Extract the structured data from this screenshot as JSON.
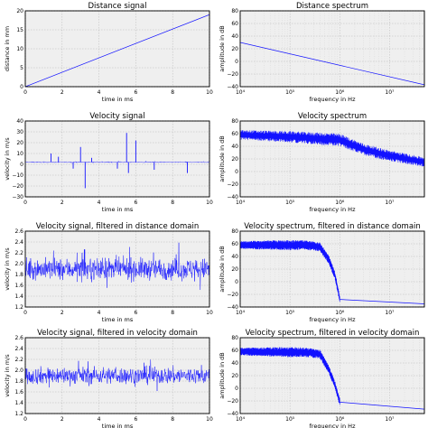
{
  "colors": {
    "line": "#1212ff",
    "axes_bg": "#efefef",
    "grid": "#b8b8b8"
  },
  "chart_data": [
    {
      "type": "line",
      "title": "Distance signal",
      "xlabel": "time in ms",
      "ylabel": "distance in mm",
      "xlim": [
        0,
        10
      ],
      "ylim": [
        0,
        20
      ],
      "xticks": [
        0,
        2,
        4,
        6,
        8,
        10
      ],
      "xtick_labels": [
        "0",
        "2",
        "4",
        "6",
        "8",
        "10"
      ],
      "yticks": [
        0,
        5,
        10,
        15,
        20
      ],
      "ytick_labels": [
        "0",
        "5",
        "10",
        "15",
        "20"
      ],
      "grid": true,
      "series": [
        {
          "kind": "straight",
          "x": [
            0,
            10
          ],
          "y": [
            0,
            19
          ]
        }
      ]
    },
    {
      "type": "line",
      "title": "Distance spectrum",
      "xlabel": "frequency in Hz",
      "ylabel": "amplitude in dB",
      "xscale": "log",
      "xlim": [
        10000,
        50000000
      ],
      "ylim": [
        -40,
        80
      ],
      "xticks": [
        10000,
        100000,
        1000000,
        10000000
      ],
      "xtick_labels": [
        "10⁴",
        "10⁵",
        "10⁶",
        "10⁷"
      ],
      "yticks": [
        -40,
        -20,
        0,
        20,
        40,
        60,
        80
      ],
      "ytick_labels": [
        "−40",
        "−20",
        "0",
        "20",
        "40",
        "60",
        "80"
      ],
      "grid": true,
      "series": [
        {
          "kind": "straight",
          "x": [
            10000,
            50000000
          ],
          "y": [
            30,
            -37
          ]
        }
      ]
    },
    {
      "type": "line",
      "title": "Velocity signal",
      "xlabel": "time in ms",
      "ylabel": "velocity in m/s",
      "xlim": [
        0,
        10
      ],
      "ylim": [
        -30,
        40
      ],
      "xticks": [
        0,
        2,
        4,
        6,
        8,
        10
      ],
      "xtick_labels": [
        "0",
        "2",
        "4",
        "6",
        "8",
        "10"
      ],
      "yticks": [
        -30,
        -20,
        -10,
        0,
        10,
        20,
        30,
        40
      ],
      "ytick_labels": [
        "−30",
        "−20",
        "−10",
        "0",
        "10",
        "20",
        "30",
        "40"
      ],
      "grid": true,
      "series": [
        {
          "kind": "noise",
          "x_range": [
            0,
            10
          ],
          "base": 2,
          "spread": 1.2,
          "spikes": [
            {
              "x": 1.4,
              "y": 10
            },
            {
              "x": 1.8,
              "y": 7
            },
            {
              "x": 2.6,
              "y": -4
            },
            {
              "x": 3.0,
              "y": 16
            },
            {
              "x": 3.25,
              "y": -22
            },
            {
              "x": 3.6,
              "y": 6
            },
            {
              "x": 5.0,
              "y": -4
            },
            {
              "x": 5.5,
              "y": 29
            },
            {
              "x": 5.6,
              "y": -8
            },
            {
              "x": 6.0,
              "y": 22
            },
            {
              "x": 7.0,
              "y": -5
            },
            {
              "x": 8.8,
              "y": -8
            }
          ]
        }
      ]
    },
    {
      "type": "line",
      "title": "Velocity spectrum",
      "xlabel": "frequency in Hz",
      "ylabel": "amplitude in dB",
      "xscale": "log",
      "xlim": [
        10000,
        50000000
      ],
      "ylim": [
        -40,
        80
      ],
      "xticks": [
        10000,
        100000,
        1000000,
        10000000
      ],
      "xtick_labels": [
        "10⁴",
        "10⁵",
        "10⁶",
        "10⁷"
      ],
      "yticks": [
        -40,
        -20,
        0,
        20,
        40,
        60,
        80
      ],
      "ytick_labels": [
        "−40",
        "−20",
        "0",
        "20",
        "40",
        "60",
        "80"
      ],
      "grid": true,
      "series": [
        {
          "kind": "band",
          "points": [
            [
              10000,
              58
            ],
            [
              100000,
              55
            ],
            [
              1000000,
              50
            ],
            [
              3000000,
              35
            ],
            [
              10000000,
              25
            ],
            [
              50000000,
              15
            ]
          ],
          "width": 20
        }
      ]
    },
    {
      "type": "line",
      "title": "Velocity signal, filtered in distance domain",
      "xlabel": "time in ms",
      "ylabel": "velocity in m/s",
      "xlim": [
        0,
        10
      ],
      "ylim": [
        1.2,
        2.6
      ],
      "xticks": [
        0,
        2,
        4,
        6,
        8,
        10
      ],
      "xtick_labels": [
        "0",
        "2",
        "4",
        "6",
        "8",
        "10"
      ],
      "yticks": [
        1.2,
        1.4,
        1.6,
        1.8,
        2.0,
        2.2,
        2.4,
        2.6
      ],
      "ytick_labels": [
        "1.2",
        "1.4",
        "1.6",
        "1.8",
        "2.0",
        "2.2",
        "2.4",
        "2.6"
      ],
      "grid": true,
      "series": [
        {
          "kind": "noise",
          "x_range": [
            0,
            10
          ],
          "base": 1.9,
          "spread": 0.5
        }
      ]
    },
    {
      "type": "line",
      "title": "Velocity spectrum, filtered in distance domain",
      "xlabel": "frequency in Hz",
      "ylabel": "amplitude in dB",
      "xscale": "log",
      "xlim": [
        10000,
        50000000
      ],
      "ylim": [
        -40,
        80
      ],
      "xticks": [
        10000,
        100000,
        1000000,
        10000000
      ],
      "xtick_labels": [
        "10⁴",
        "10⁵",
        "10⁶",
        "10⁷"
      ],
      "yticks": [
        -40,
        -20,
        0,
        20,
        40,
        60,
        80
      ],
      "ytick_labels": [
        "−40",
        "−20",
        "0",
        "20",
        "40",
        "60",
        "80"
      ],
      "grid": true,
      "series": [
        {
          "kind": "band",
          "points": [
            [
              10000,
              58
            ],
            [
              200000,
              58
            ],
            [
              400000,
              55
            ],
            [
              600000,
              35
            ],
            [
              800000,
              10
            ],
            [
              1000000,
              -28
            ]
          ],
          "width": 16
        },
        {
          "kind": "straight",
          "x": [
            1000000,
            50000000
          ],
          "y": [
            -28,
            -35
          ]
        }
      ]
    },
    {
      "type": "line",
      "title": "Velocity signal, filtered in velocity domain",
      "xlabel": "time in ms",
      "ylabel": "velocity in m/s",
      "xlim": [
        0,
        10
      ],
      "ylim": [
        1.2,
        2.6
      ],
      "xticks": [
        0,
        2,
        4,
        6,
        8,
        10
      ],
      "xtick_labels": [
        "0",
        "2",
        "4",
        "6",
        "8",
        "10"
      ],
      "yticks": [
        1.2,
        1.4,
        1.6,
        1.8,
        2.0,
        2.2,
        2.4,
        2.6
      ],
      "ytick_labels": [
        "1.2",
        "1.4",
        "1.6",
        "1.8",
        "2.0",
        "2.2",
        "2.4",
        "2.6"
      ],
      "grid": true,
      "series": [
        {
          "kind": "noise",
          "x_range": [
            0,
            10
          ],
          "base": 1.9,
          "spread": 0.4
        }
      ]
    },
    {
      "type": "line",
      "title": "Velocity spectrum, filtered in velocity domain",
      "xlabel": "frequency in Hz",
      "ylabel": "amplitude in dB",
      "xscale": "log",
      "xlim": [
        10000,
        50000000
      ],
      "ylim": [
        -40,
        80
      ],
      "xticks": [
        10000,
        100000,
        1000000,
        10000000
      ],
      "xtick_labels": [
        "10⁴",
        "10⁵",
        "10⁶",
        "10⁷"
      ],
      "yticks": [
        -40,
        -20,
        0,
        20,
        40,
        60,
        80
      ],
      "ytick_labels": [
        "−40",
        "−20",
        "0",
        "20",
        "40",
        "60",
        "80"
      ],
      "grid": true,
      "series": [
        {
          "kind": "band",
          "points": [
            [
              10000,
              58
            ],
            [
              200000,
              57
            ],
            [
              400000,
              54
            ],
            [
              600000,
              30
            ],
            [
              800000,
              5
            ],
            [
              1000000,
              -22
            ]
          ],
          "width": 16
        },
        {
          "kind": "straight",
          "x": [
            1000000,
            50000000
          ],
          "y": [
            -22,
            -33
          ]
        }
      ]
    }
  ]
}
